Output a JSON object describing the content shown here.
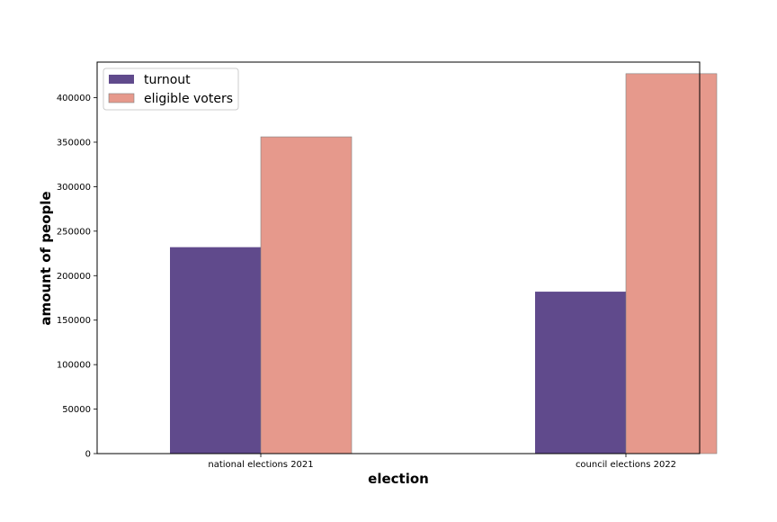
{
  "chart_data": {
    "type": "bar",
    "title": "",
    "xlabel": "election",
    "ylabel": "amount of people",
    "categories": [
      "national elections 2021",
      "council elections 2022"
    ],
    "series": [
      {
        "name": "turnout",
        "values": [
          232000,
          182000
        ],
        "color": "#604a8c"
      },
      {
        "name": "eligible voters",
        "values": [
          356000,
          427000
        ],
        "color": "#e6998c"
      }
    ],
    "ylim": [
      0,
      440000
    ],
    "yticks": [
      0,
      50000,
      100000,
      150000,
      200000,
      250000,
      300000,
      350000,
      400000
    ],
    "grid": false,
    "legend_position": "top-left"
  }
}
